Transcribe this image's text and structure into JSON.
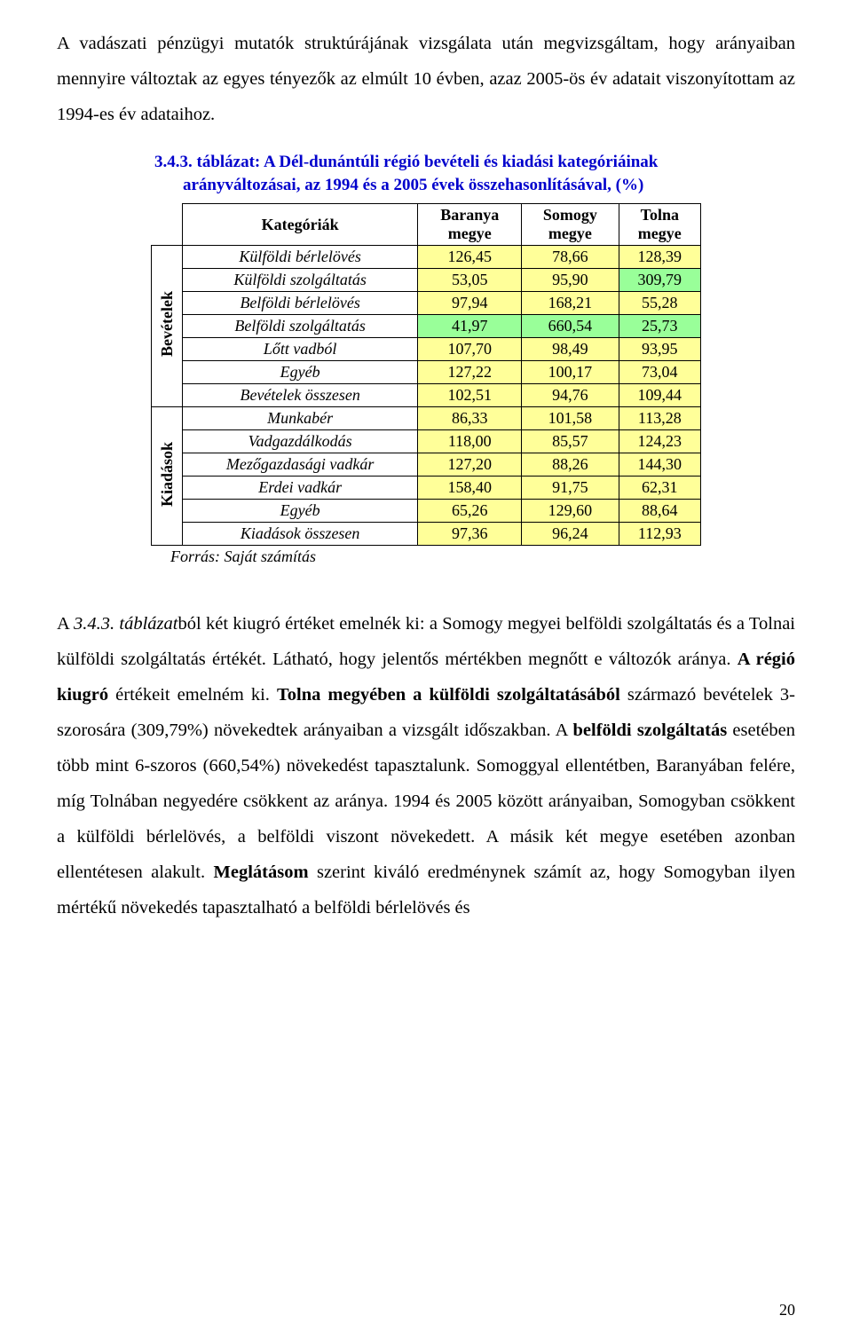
{
  "para1": {
    "text": "A vadászati pénzügyi mutatók struktúrájának vizsgálata után megvizsgáltam, hogy arányaiban mennyire változtak az egyes tényezők az elmúlt 10 évben, azaz 2005-ös év adatait viszonyítottam az 1994-es év adataihoz."
  },
  "table": {
    "title_line1": "3.4.3. táblázat: A Dél-dunántúli régió bevételi és kiadási kategóriáinak",
    "title_line2": "arányváltozásai, az 1994 és a 2005 évek összehasonlításával, (%)",
    "title_color": "#0000cc",
    "header_row": {
      "c0": "",
      "c1": "Kategóriák",
      "c2a": "Baranya",
      "c2b": "megye",
      "c3a": "Somogy",
      "c3b": "megye",
      "c4a": "Tolna",
      "c4b": "megye"
    },
    "groups": [
      {
        "label": "Bevételek",
        "span": 7
      },
      {
        "label": "Kiadások",
        "span": 6
      }
    ],
    "rows": [
      {
        "label": "Külföldi bérlelövés",
        "v": [
          "126,45",
          "78,66",
          "128,39"
        ],
        "hl": [
          1,
          1,
          1
        ]
      },
      {
        "label": "Külföldi szolgáltatás",
        "v": [
          "53,05",
          "95,90",
          "309,79"
        ],
        "hl": [
          1,
          1,
          2
        ]
      },
      {
        "label": "Belföldi bérlelövés",
        "v": [
          "97,94",
          "168,21",
          "55,28"
        ],
        "hl": [
          1,
          1,
          1
        ]
      },
      {
        "label": "Belföldi szolgáltatás",
        "v": [
          "41,97",
          "660,54",
          "25,73"
        ],
        "hl": [
          2,
          2,
          2
        ]
      },
      {
        "label": "Lőtt vadból",
        "v": [
          "107,70",
          "98,49",
          "93,95"
        ],
        "hl": [
          1,
          1,
          1
        ]
      },
      {
        "label": "Egyéb",
        "v": [
          "127,22",
          "100,17",
          "73,04"
        ],
        "hl": [
          1,
          1,
          1
        ]
      },
      {
        "label": "Bevételek összesen",
        "v": [
          "102,51",
          "94,76",
          "109,44"
        ],
        "hl": [
          1,
          1,
          1
        ]
      },
      {
        "label": "Munkabér",
        "v": [
          "86,33",
          "101,58",
          "113,28"
        ],
        "hl": [
          1,
          1,
          1
        ]
      },
      {
        "label": "Vadgazdálkodás",
        "v": [
          "118,00",
          "85,57",
          "124,23"
        ],
        "hl": [
          1,
          1,
          1
        ]
      },
      {
        "label": "Mezőgazdasági vadkár",
        "v": [
          "127,20",
          "88,26",
          "144,30"
        ],
        "hl": [
          1,
          1,
          1
        ]
      },
      {
        "label": "Erdei vadkár",
        "v": [
          "158,40",
          "91,75",
          "62,31"
        ],
        "hl": [
          1,
          1,
          1
        ]
      },
      {
        "label": "Egyéb",
        "v": [
          "65,26",
          "129,60",
          "88,64"
        ],
        "hl": [
          1,
          1,
          1
        ]
      },
      {
        "label": "Kiadások összesen",
        "v": [
          "97,36",
          "96,24",
          "112,93"
        ],
        "hl": [
          1,
          1,
          1
        ]
      }
    ],
    "colors": {
      "highlight_yellow": "#ffff99",
      "highlight_green": "#99ff99",
      "plain": "#ffffff"
    },
    "source": "Forrás: Saját számítás"
  },
  "para2": {
    "p1": "A ",
    "p2": "3.4.3. táblázat",
    "p3": "ból két kiugró értéket emelnék ki: a Somogy megyei belföldi szolgáltatás és a Tolnai külföldi szolgáltatás értékét. Látható, hogy jelentős mértékben megnőtt e változók aránya. ",
    "p4": "A régió kiugró",
    "p5": " értékeit emelném ki. ",
    "p6": "Tolna megyében a külföldi szolgáltatásából",
    "p7": " származó bevételek 3-szorosára (309,79%) növekedtek arányaiban a vizsgált időszakban. A ",
    "p8": "belföldi szolgáltatás",
    "p9": " esetében több mint 6-szoros (660,54%) növekedést tapasztalunk. Somoggyal ellentétben, Baranyában felére, míg Tolnában negyedére csökkent az aránya. 1994 és 2005 között arányaiban, Somogyban csökkent a külföldi bérlelövés, a belföldi viszont növekedett. A másik két megye esetében azonban ellentétesen alakult. ",
    "p10": "Meglátásom",
    "p11": " szerint kiváló eredménynek számít az, hogy Somogyban ilyen mértékű növekedés tapasztalható a belföldi bérlelövés és"
  },
  "page_number": "20"
}
